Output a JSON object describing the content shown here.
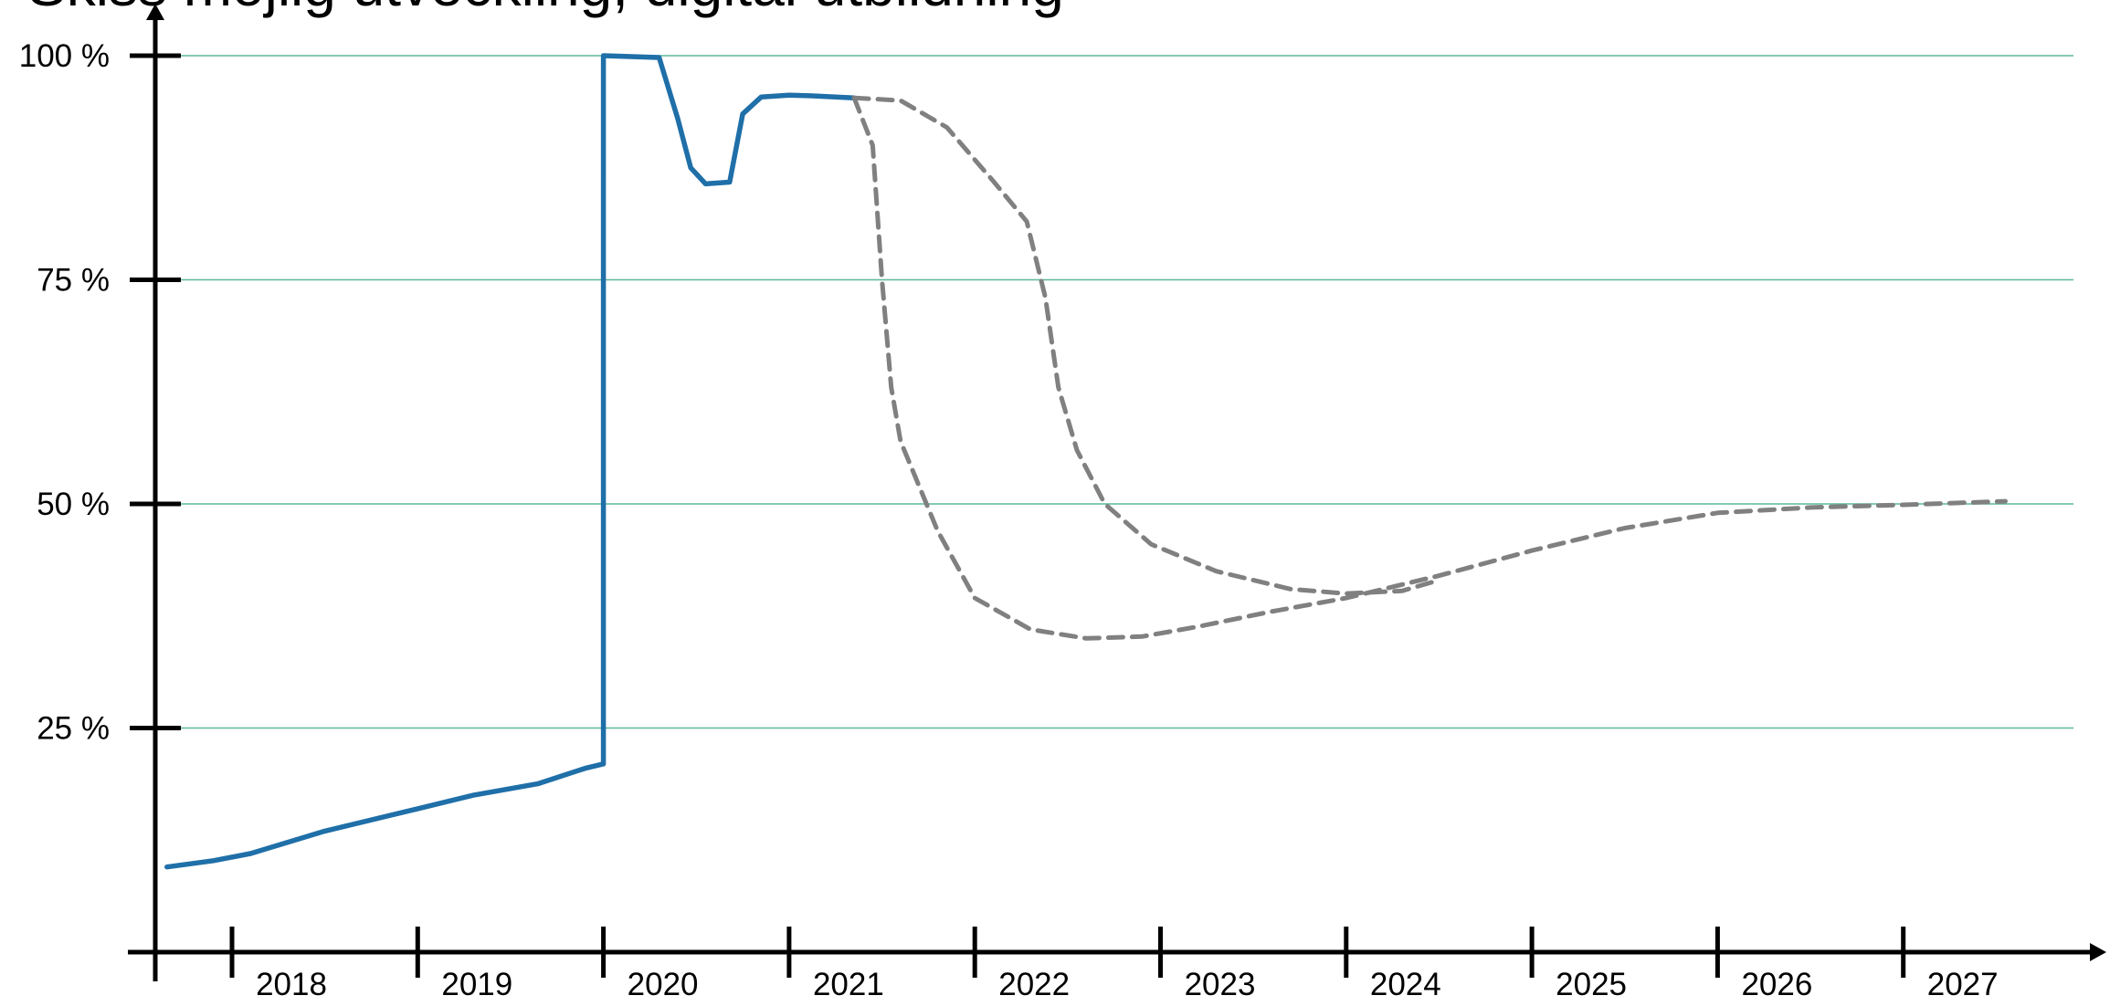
{
  "chart_data": {
    "type": "line",
    "title": "Skiss möjlig utveckling, digital utbildning",
    "xlabel": "",
    "ylabel": "",
    "x_ticks": [
      "2018",
      "2019",
      "2020",
      "2021",
      "2022",
      "2023",
      "2024",
      "2025",
      "2026",
      "2027"
    ],
    "y_ticks": [
      "25 %",
      "50 %",
      "75 %",
      "100 %"
    ],
    "xlim": [
      2017.6,
      2028.0
    ],
    "ylim": [
      0,
      100
    ],
    "grid": true,
    "series": [
      {
        "style": "solid",
        "color": "#1f6fa8",
        "points": [
          [
            2017.65,
            9.5
          ],
          [
            2017.9,
            10.2
          ],
          [
            2018.1,
            11.0
          ],
          [
            2018.5,
            13.5
          ],
          [
            2019.0,
            16.0
          ],
          [
            2019.3,
            17.5
          ],
          [
            2019.65,
            18.8
          ],
          [
            2019.9,
            20.5
          ],
          [
            2020.0,
            21.0
          ],
          [
            2020.0,
            100.0
          ],
          [
            2020.3,
            99.8
          ],
          [
            2020.4,
            93.0
          ],
          [
            2020.47,
            87.5
          ],
          [
            2020.55,
            85.7
          ],
          [
            2020.62,
            85.8
          ],
          [
            2020.68,
            85.9
          ],
          [
            2020.75,
            93.5
          ],
          [
            2020.85,
            95.4
          ],
          [
            2021.0,
            95.6
          ],
          [
            2021.15,
            95.5
          ],
          [
            2021.35,
            95.3
          ]
        ]
      },
      {
        "style": "dashed",
        "color": "#808080",
        "points": [
          [
            2021.35,
            95.3
          ],
          [
            2021.45,
            90.0
          ],
          [
            2021.5,
            75.0
          ],
          [
            2021.55,
            63.0
          ],
          [
            2021.6,
            57.0
          ],
          [
            2021.8,
            47.0
          ],
          [
            2022.0,
            39.5
          ],
          [
            2022.3,
            36.0
          ],
          [
            2022.6,
            35.0
          ],
          [
            2022.9,
            35.2
          ],
          [
            2023.2,
            36.3
          ],
          [
            2023.6,
            38.0
          ],
          [
            2024.0,
            39.5
          ],
          [
            2024.5,
            42.0
          ],
          [
            2025.0,
            44.8
          ],
          [
            2025.5,
            47.3
          ],
          [
            2026.0,
            49.0
          ],
          [
            2026.5,
            49.6
          ],
          [
            2027.0,
            49.9
          ],
          [
            2027.55,
            50.3
          ]
        ]
      },
      {
        "style": "dashed",
        "color": "#808080",
        "points": [
          [
            2021.35,
            95.3
          ],
          [
            2021.6,
            95.0
          ],
          [
            2021.85,
            92.0
          ],
          [
            2022.1,
            86.0
          ],
          [
            2022.28,
            81.5
          ],
          [
            2022.38,
            73.0
          ],
          [
            2022.45,
            63.0
          ],
          [
            2022.55,
            56.0
          ],
          [
            2022.7,
            50.0
          ],
          [
            2022.95,
            45.5
          ],
          [
            2023.3,
            42.5
          ],
          [
            2023.7,
            40.5
          ],
          [
            2024.0,
            40.0
          ],
          [
            2024.3,
            40.3
          ],
          [
            2024.5,
            41.5
          ]
        ]
      }
    ]
  }
}
